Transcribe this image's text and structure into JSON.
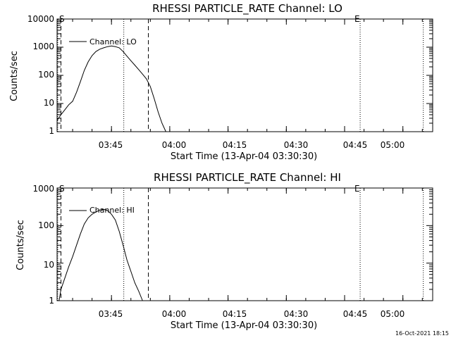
{
  "colors": {
    "background": "#ffffff",
    "foreground": "#000000"
  },
  "footer": {
    "date_stamp": "16-Oct-2021 18:15"
  },
  "chart_data": [
    {
      "type": "line",
      "title": "RHESSI PARTICLE_RATE Channel: LO",
      "xlabel": "Start Time (13-Apr-04 03:30:30)",
      "ylabel": "Counts/sec",
      "y_scale": "log",
      "ylim": [
        1,
        10000
      ],
      "xlim": [
        "03:31:00",
        "05:07:40"
      ],
      "x_ticks": [
        "03:45",
        "04:00",
        "04:15",
        "04:30",
        "04:45",
        "05:00"
      ],
      "y_ticks": [
        "1",
        "10",
        "100",
        "1000",
        "10000"
      ],
      "legend": {
        "position": "top-left",
        "label": "Channel: LO"
      },
      "markers": {
        "start": "S",
        "end": "E"
      },
      "vlines": [
        {
          "time": "03:31:10",
          "style": "dotted",
          "role": "interval start"
        },
        {
          "time": "03:32:00",
          "style": "dashed",
          "role": "flare start"
        },
        {
          "time": "03:48:10",
          "style": "dotted",
          "role": "peak"
        },
        {
          "time": "03:54:30",
          "style": "dashed",
          "role": "flare end"
        },
        {
          "time": "04:49:00",
          "style": "dotted",
          "role": "interval end"
        },
        {
          "time": "05:05:15",
          "style": "dotted",
          "role": "next"
        }
      ],
      "series": [
        {
          "name": "Channel: LO",
          "x": [
            "03:31:00",
            "03:32:00",
            "03:33:00",
            "03:34:00",
            "03:35:00",
            "03:36:00",
            "03:37:00",
            "03:38:00",
            "03:39:00",
            "03:40:00",
            "03:41:00",
            "03:42:00",
            "03:43:00",
            "03:44:00",
            "03:45:00",
            "03:46:00",
            "03:47:00",
            "03:48:00",
            "03:49:00",
            "03:50:00",
            "03:51:00",
            "03:52:00",
            "03:53:00",
            "03:54:00",
            "03:55:00",
            "03:56:00",
            "03:57:00",
            "03:58:00",
            "03:59:00"
          ],
          "y": [
            2.5,
            4,
            6,
            9,
            12,
            25,
            60,
            150,
            300,
            500,
            700,
            850,
            950,
            1050,
            1100,
            1050,
            950,
            700,
            480,
            330,
            230,
            160,
            110,
            75,
            40,
            15,
            5,
            2,
            1
          ]
        }
      ]
    },
    {
      "type": "line",
      "title": "RHESSI PARTICLE_RATE Channel: HI",
      "xlabel": "Start Time (13-Apr-04 03:30:30)",
      "ylabel": "Counts/sec",
      "y_scale": "log",
      "ylim": [
        1,
        1000
      ],
      "xlim": [
        "03:31:00",
        "05:07:40"
      ],
      "x_ticks": [
        "03:45",
        "04:00",
        "04:15",
        "04:30",
        "04:45",
        "05:00"
      ],
      "y_ticks": [
        "1",
        "10",
        "100",
        "1000"
      ],
      "legend": {
        "position": "top-left",
        "label": "Channel: HI"
      },
      "markers": {
        "start": "S",
        "end": "E"
      },
      "vlines": [
        {
          "time": "03:31:10",
          "style": "dotted",
          "role": "interval start"
        },
        {
          "time": "03:32:00",
          "style": "dashed",
          "role": "flare start"
        },
        {
          "time": "03:48:10",
          "style": "dotted",
          "role": "peak"
        },
        {
          "time": "03:54:30",
          "style": "dashed",
          "role": "flare end"
        },
        {
          "time": "04:49:00",
          "style": "dotted",
          "role": "interval end"
        },
        {
          "time": "05:05:15",
          "style": "dotted",
          "role": "next"
        }
      ],
      "series": [
        {
          "name": "Channel: HI",
          "x": [
            "03:31:30",
            "03:32:00",
            "03:33:00",
            "03:34:00",
            "03:35:00",
            "03:36:00",
            "03:37:00",
            "03:38:00",
            "03:39:00",
            "03:40:00",
            "03:41:00",
            "03:42:00",
            "03:43:00",
            "03:44:00",
            "03:45:00",
            "03:46:00",
            "03:47:00",
            "03:48:00",
            "03:49:00",
            "03:50:00",
            "03:51:00",
            "03:52:00",
            "03:53:00"
          ],
          "y": [
            1,
            2,
            4,
            8,
            15,
            30,
            60,
            110,
            160,
            200,
            230,
            260,
            270,
            250,
            200,
            140,
            70,
            30,
            12,
            6,
            3,
            1.8,
            1
          ]
        }
      ]
    }
  ]
}
